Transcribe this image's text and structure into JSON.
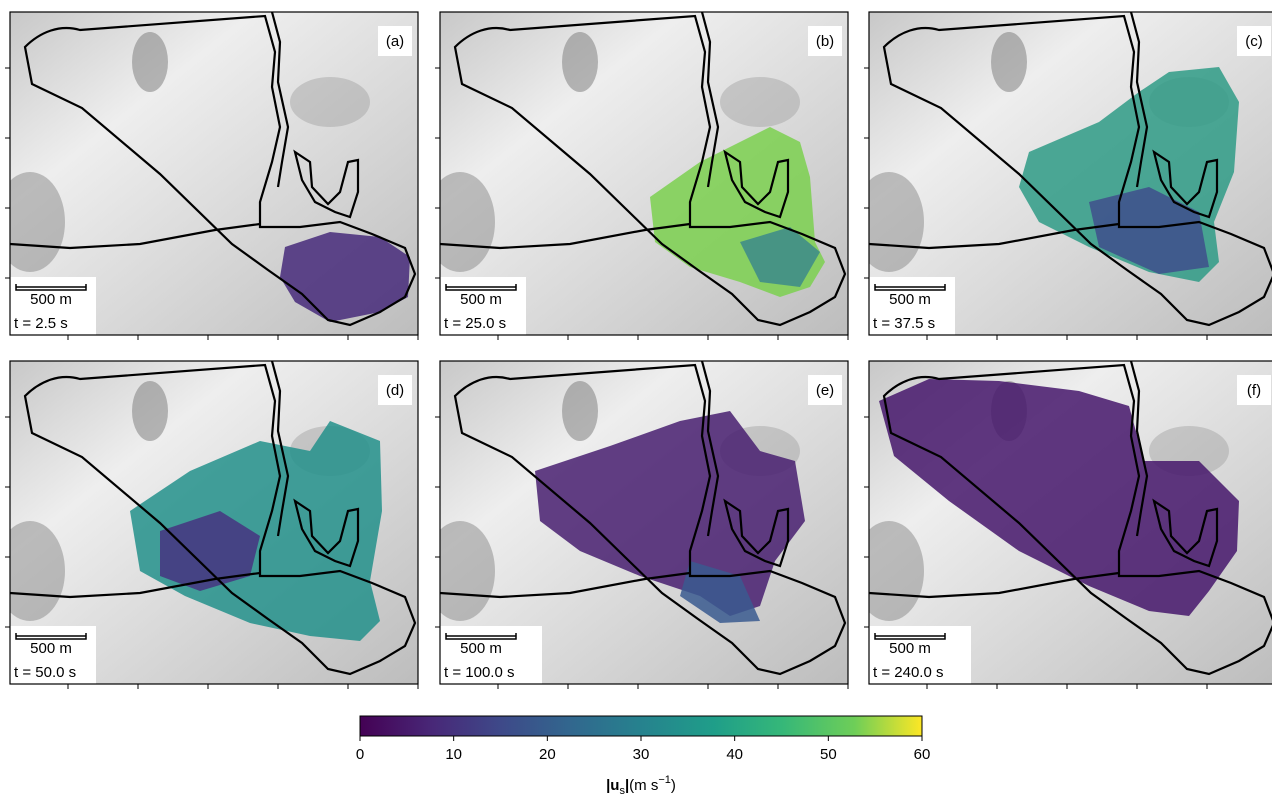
{
  "panels": [
    {
      "label": "(a)",
      "scale": "500 m",
      "time": "t = 2.5 s"
    },
    {
      "label": "(b)",
      "scale": "500 m",
      "time": "t = 25.0 s"
    },
    {
      "label": "(c)",
      "scale": "500 m",
      "time": "t = 37.5 s"
    },
    {
      "label": "(d)",
      "scale": "500 m",
      "time": "t = 50.0 s"
    },
    {
      "label": "(e)",
      "scale": "500 m",
      "time": "t = 100.0 s"
    },
    {
      "label": "(f)",
      "scale": "500 m",
      "time": "t = 240.0 s"
    }
  ],
  "colorbar": {
    "lim": [
      0,
      60
    ],
    "ticks": [
      0,
      10,
      20,
      30,
      40,
      50,
      60
    ],
    "label": {
      "open": "|",
      "symbol": "u",
      "subscript": "s",
      "close": "|",
      "unit": "(m s",
      "exponent": "−1",
      "end": ")"
    }
  }
}
